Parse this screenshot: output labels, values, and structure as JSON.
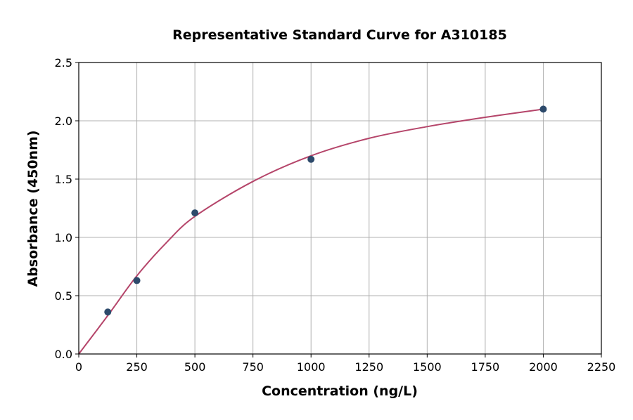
{
  "chart_data": {
    "type": "scatter",
    "title": "Representative Standard Curve for A310185",
    "xlabel": "Concentration (ng/L)",
    "ylabel": "Absorbance (450nm)",
    "xlim": [
      0,
      2250
    ],
    "ylim": [
      0,
      2.5
    ],
    "xticks": [
      0,
      250,
      500,
      750,
      1000,
      1250,
      1500,
      1750,
      2000,
      2250
    ],
    "yticks": [
      0.0,
      0.5,
      1.0,
      1.5,
      2.0,
      2.5
    ],
    "grid": true,
    "points": {
      "x": [
        125,
        250,
        500,
        1000,
        2000
      ],
      "y": [
        0.36,
        0.63,
        1.21,
        1.67,
        2.1
      ],
      "color": "#2d4a6b"
    },
    "fit_curve": {
      "x": [
        0,
        125,
        250,
        375,
        500,
        750,
        1000,
        1250,
        1500,
        1750,
        2000
      ],
      "y": [
        0,
        0.33,
        0.67,
        0.95,
        1.18,
        1.48,
        1.7,
        1.85,
        1.95,
        2.03,
        2.1
      ],
      "color": "#b5456a"
    }
  }
}
